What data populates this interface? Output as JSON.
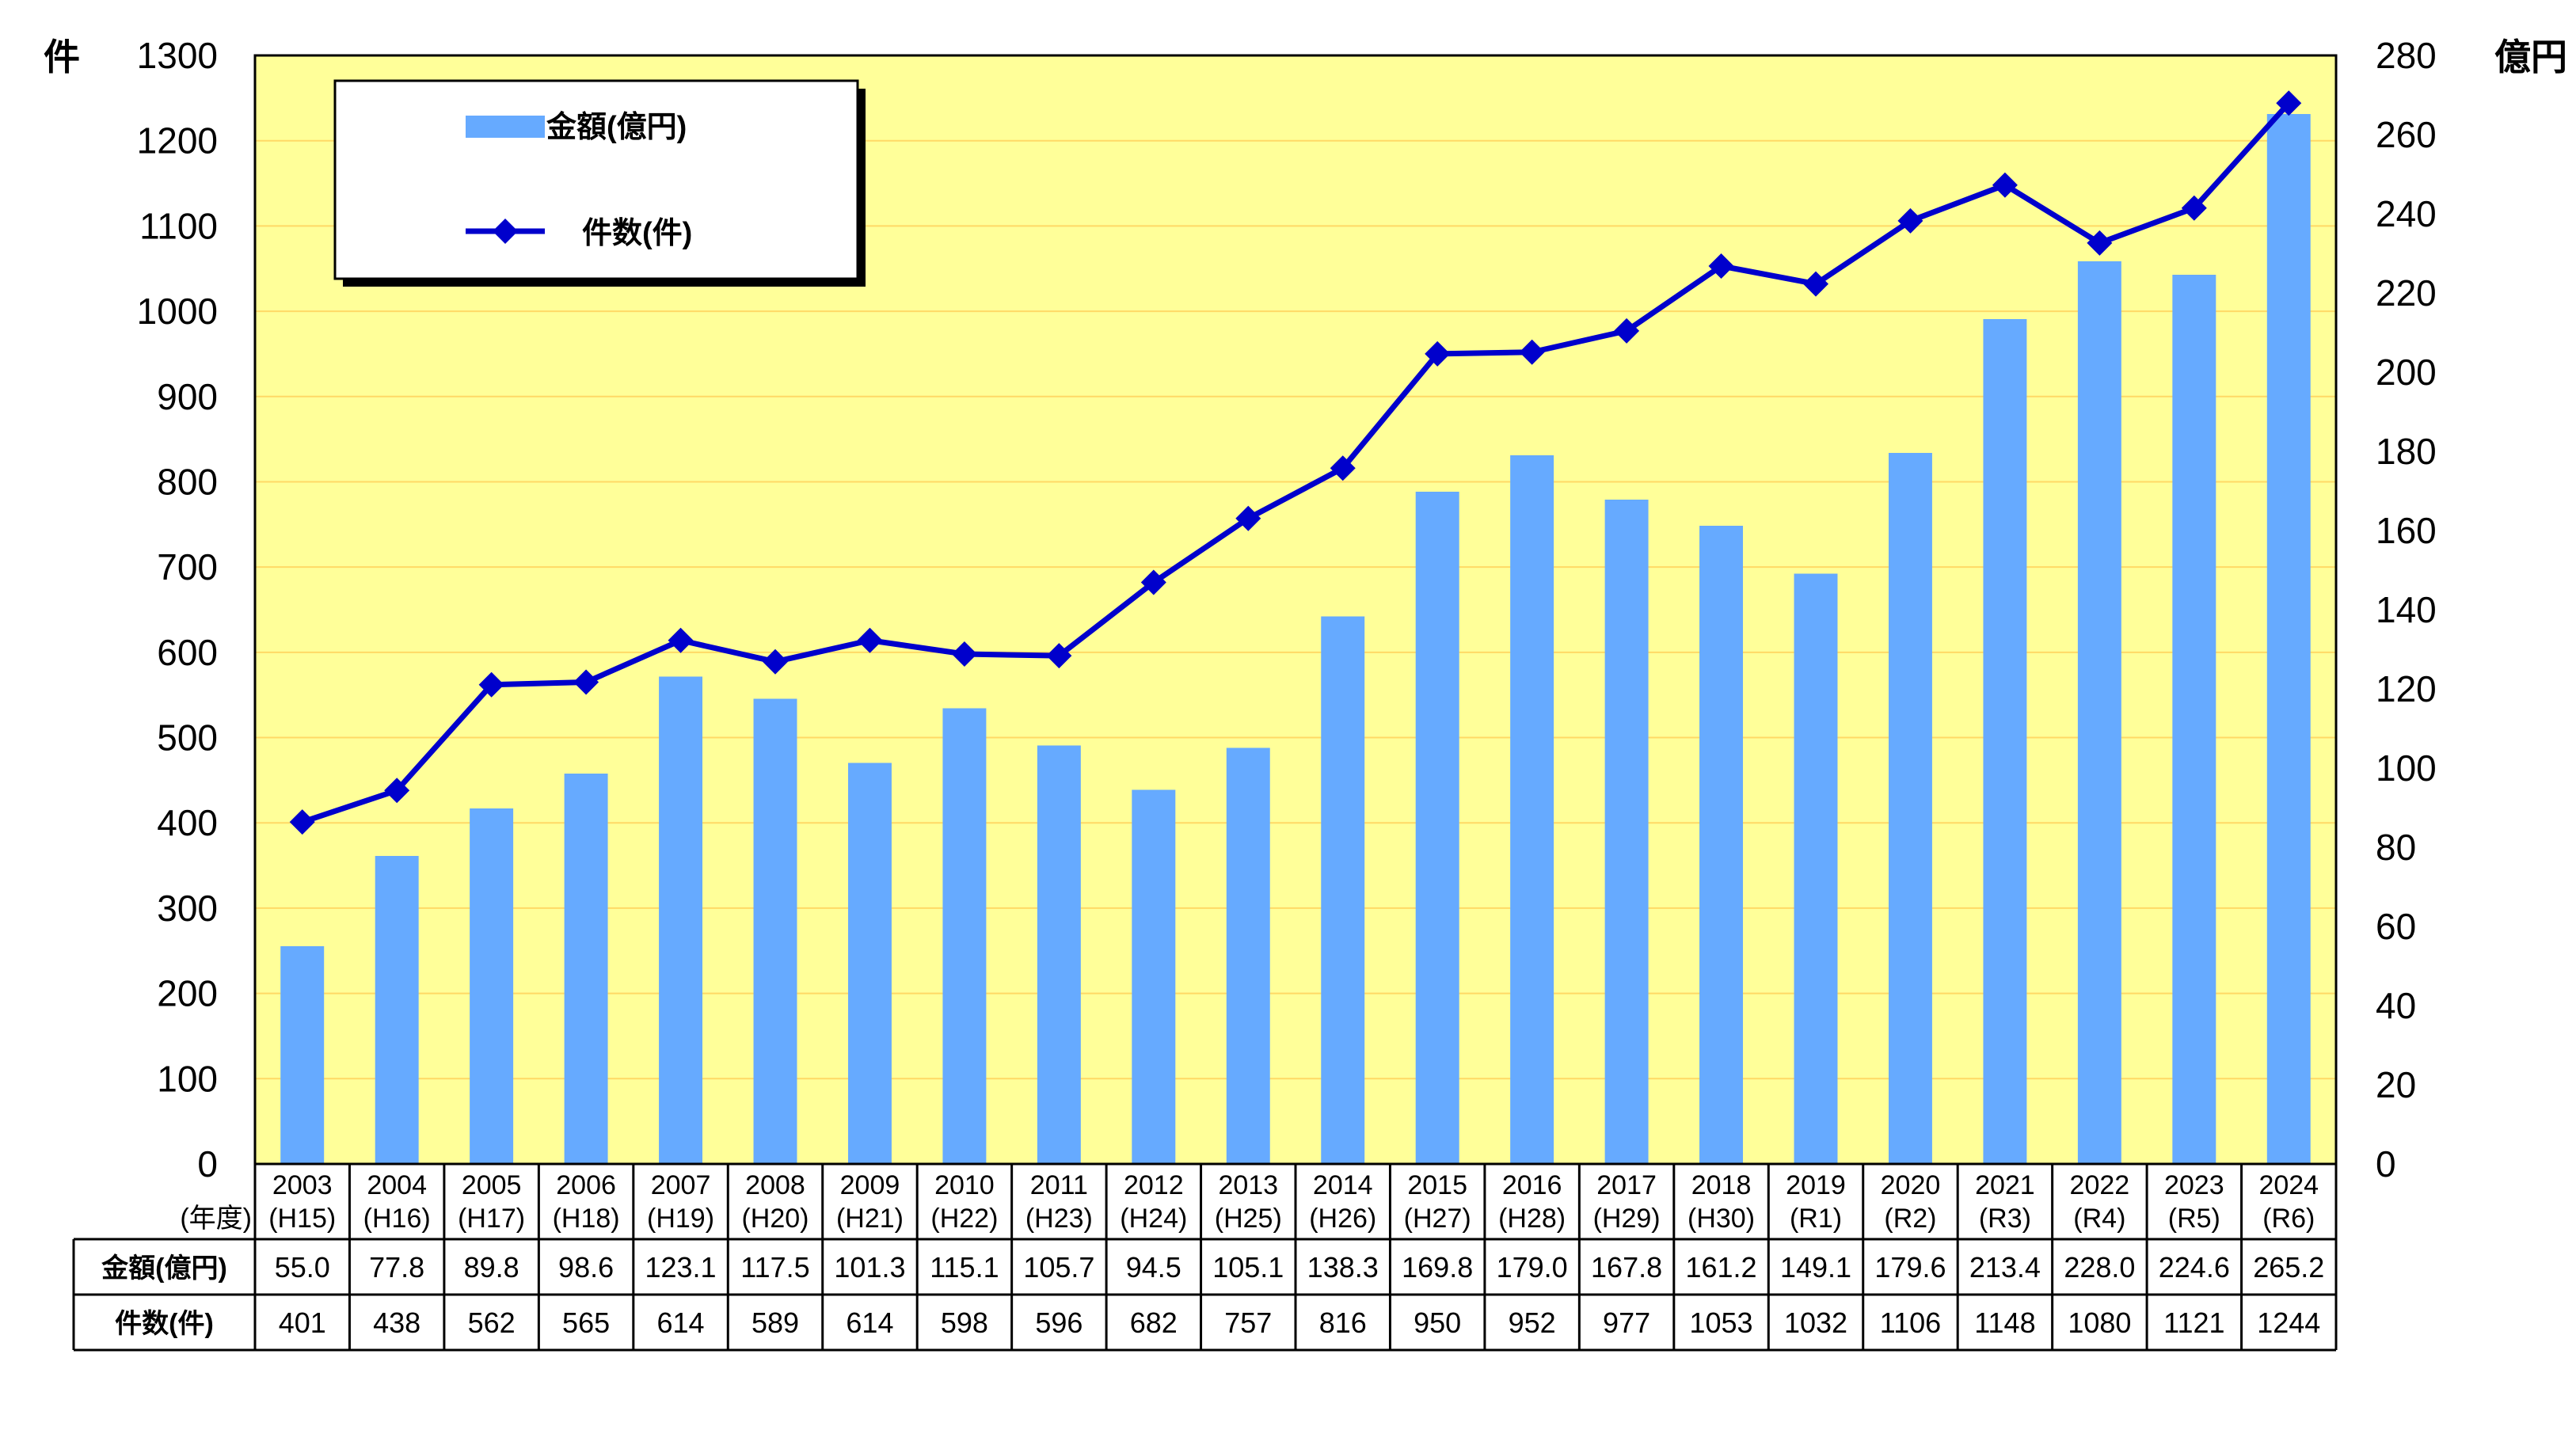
{
  "chart_data": {
    "type": "bar",
    "left_axis": {
      "unit": "件",
      "ylim": [
        0,
        1300
      ],
      "ticks": [
        "0",
        "100",
        "200",
        "300",
        "400",
        "500",
        "600",
        "700",
        "800",
        "900",
        "1000",
        "1100",
        "1200",
        "1300"
      ]
    },
    "right_axis": {
      "unit": "億円",
      "ylim": [
        0,
        280
      ],
      "ticks": [
        "0",
        "20",
        "40",
        "60",
        "80",
        "100",
        "120",
        "140",
        "160",
        "180",
        "200",
        "220",
        "240",
        "260",
        "280"
      ]
    },
    "year_label": "(年度)",
    "categories": [
      {
        "year": "2003",
        "era": "(H15)"
      },
      {
        "year": "2004",
        "era": "(H16)"
      },
      {
        "year": "2005",
        "era": "(H17)"
      },
      {
        "year": "2006",
        "era": "(H18)"
      },
      {
        "year": "2007",
        "era": "(H19)"
      },
      {
        "year": "2008",
        "era": "(H20)"
      },
      {
        "year": "2009",
        "era": "(H21)"
      },
      {
        "year": "2010",
        "era": "(H22)"
      },
      {
        "year": "2011",
        "era": "(H23)"
      },
      {
        "year": "2012",
        "era": "(H24)"
      },
      {
        "year": "2013",
        "era": "(H25)"
      },
      {
        "year": "2014",
        "era": "(H26)"
      },
      {
        "year": "2015",
        "era": "(H27)"
      },
      {
        "year": "2016",
        "era": "(H28)"
      },
      {
        "year": "2017",
        "era": "(H29)"
      },
      {
        "year": "2018",
        "era": "(H30)"
      },
      {
        "year": "2019",
        "era": "(R1)"
      },
      {
        "year": "2020",
        "era": "(R2)"
      },
      {
        "year": "2021",
        "era": "(R3)"
      },
      {
        "year": "2022",
        "era": "(R4)"
      },
      {
        "year": "2023",
        "era": "(R5)"
      },
      {
        "year": "2024",
        "era": "(R6)"
      }
    ],
    "series": [
      {
        "name": "金額(億円)",
        "type": "bar",
        "axis": "right",
        "color": "#66aaff",
        "values": [
          55.0,
          77.8,
          89.8,
          98.6,
          123.1,
          117.5,
          101.3,
          115.1,
          105.7,
          94.5,
          105.1,
          138.3,
          169.8,
          179.0,
          167.8,
          161.2,
          149.1,
          179.6,
          213.4,
          228.0,
          224.6,
          265.2
        ],
        "labels": [
          "55.0",
          "77.8",
          "89.8",
          "98.6",
          "123.1",
          "117.5",
          "101.3",
          "115.1",
          "105.7",
          "94.5",
          "105.1",
          "138.3",
          "169.8",
          "179.0",
          "167.8",
          "161.2",
          "149.1",
          "179.6",
          "213.4",
          "228.0",
          "224.6",
          "265.2"
        ]
      },
      {
        "name": "件数(件)",
        "type": "line",
        "axis": "left",
        "color": "#0000cc",
        "values": [
          401,
          438,
          562,
          565,
          614,
          589,
          614,
          598,
          596,
          682,
          757,
          816,
          950,
          952,
          977,
          1053,
          1032,
          1106,
          1148,
          1080,
          1121,
          1244
        ],
        "labels": [
          "401",
          "438",
          "562",
          "565",
          "614",
          "589",
          "614",
          "598",
          "596",
          "682",
          "757",
          "816",
          "950",
          "952",
          "977",
          "1053",
          "1032",
          "1106",
          "1148",
          "1080",
          "1121",
          "1244"
        ]
      }
    ],
    "table_rows": [
      {
        "label": "金額(億円)",
        "series": 0
      },
      {
        "label": "件数(件)",
        "series": 1
      }
    ],
    "plot_background": "#ffff99",
    "gridline_color": "#ffd966",
    "legend_placement": "top-left"
  }
}
